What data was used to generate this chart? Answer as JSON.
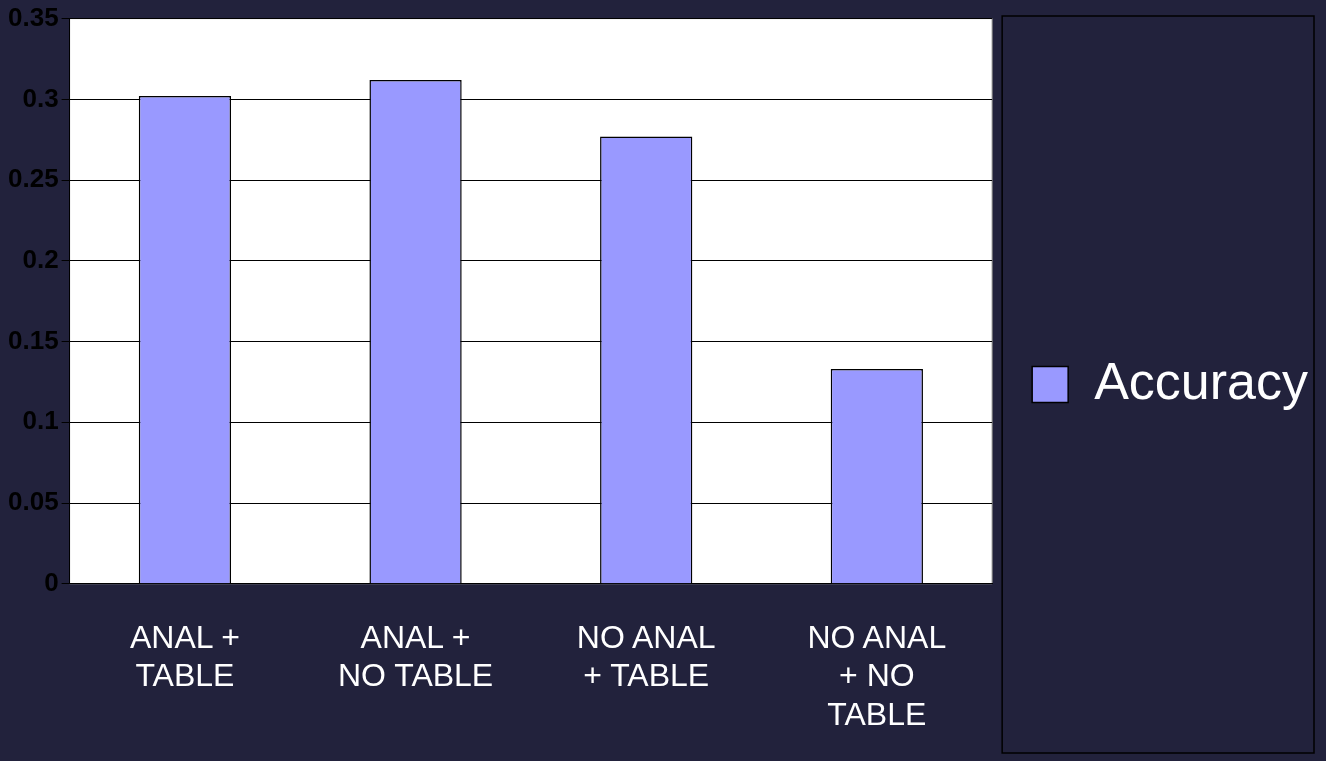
{
  "chart_data": {
    "type": "bar",
    "categories": [
      "ANAL + TABLE",
      "ANAL + NO TABLE",
      "NO ANAL + TABLE",
      "NO ANAL + NO TABLE"
    ],
    "series": [
      {
        "name": "Accuracy",
        "color": "#9999ff",
        "values": [
          0.302,
          0.312,
          0.277,
          0.133
        ]
      }
    ],
    "ylim": [
      0,
      0.35
    ],
    "yticks": [
      0,
      0.05,
      0.1,
      0.15,
      0.2,
      0.25,
      0.3,
      0.35
    ],
    "grid": "y",
    "legend": "right"
  }
}
